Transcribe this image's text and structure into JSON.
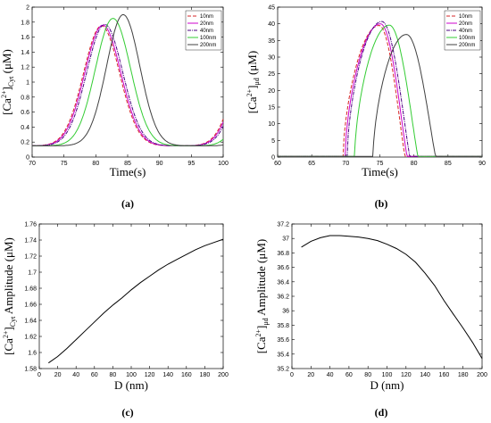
{
  "chart_data": [
    {
      "type": "line",
      "panel_label": "(a)",
      "xlabel": "Time(s)",
      "ylabel_parts": [
        "[Ca",
        "2+",
        "]",
        "Cyt",
        " (μM)"
      ],
      "xlim": [
        70,
        100
      ],
      "ylim": [
        0,
        2
      ],
      "xticks": [
        70,
        75,
        80,
        85,
        90,
        95,
        100
      ],
      "yticks": [
        0,
        0.2,
        0.4,
        0.6,
        0.8,
        1,
        1.2,
        1.4,
        1.6,
        1.8,
        2
      ],
      "legend": "top-right",
      "series": [
        {
          "name": "10nm",
          "color": "#d62728",
          "dash": "4,2",
          "peak_t": 80.9,
          "width": 4.0,
          "base": 0.15,
          "amp": 1.6
        },
        {
          "name": "20nm",
          "color": "#cc00cc",
          "dash": "",
          "peak_t": 81.1,
          "width": 4.0,
          "base": 0.15,
          "amp": 1.61
        },
        {
          "name": "40nm",
          "color": "#4b0082",
          "dash": "4,1,1,1",
          "peak_t": 81.4,
          "width": 4.0,
          "base": 0.15,
          "amp": 1.62
        },
        {
          "name": "100nm",
          "color": "#33cc33",
          "dash": "",
          "peak_t": 82.7,
          "width": 3.9,
          "base": 0.15,
          "amp": 1.7
        },
        {
          "name": "200nm",
          "color": "#404040",
          "dash": "",
          "peak_t": 84.3,
          "width": 3.7,
          "base": 0.15,
          "amp": 1.75
        }
      ]
    },
    {
      "type": "line",
      "panel_label": "(b)",
      "xlabel": "Time(s)",
      "ylabel_parts": [
        "[Ca",
        "2+",
        "]",
        "μd",
        " (μM)"
      ],
      "xlim": [
        60,
        90
      ],
      "ylim": [
        0,
        45
      ],
      "xticks": [
        60,
        65,
        70,
        75,
        80,
        85,
        90
      ],
      "yticks": [
        0,
        5,
        10,
        15,
        20,
        25,
        30,
        35,
        40,
        45
      ],
      "legend": "top-right",
      "series": [
        {
          "name": "10nm",
          "color": "#d62728",
          "dash": "4,2",
          "start": 69.6,
          "peak_t": 74.9,
          "end": 78.7,
          "peak": 39.5
        },
        {
          "name": "20nm",
          "color": "#cc00cc",
          "dash": "",
          "start": 69.9,
          "peak_t": 75.1,
          "end": 79.0,
          "peak": 40.0
        },
        {
          "name": "40nm",
          "color": "#4b0082",
          "dash": "4,1,1,1",
          "start": 70.2,
          "peak_t": 75.3,
          "end": 79.4,
          "peak": 40.7
        },
        {
          "name": "100nm",
          "color": "#33cc33",
          "dash": "",
          "start": 71.3,
          "peak_t": 76.4,
          "end": 80.6,
          "peak": 39.6
        },
        {
          "name": "200nm",
          "color": "#404040",
          "dash": "",
          "start": 74.0,
          "peak_t": 78.9,
          "end": 83.2,
          "peak": 36.8
        }
      ]
    },
    {
      "type": "line",
      "panel_label": "(c)",
      "xlabel": "D (nm)",
      "ylabel_parts": [
        "[Ca",
        "2+",
        "]",
        "Cyt",
        " Amplitude (μM)"
      ],
      "xlim": [
        0,
        200
      ],
      "ylim": [
        1.58,
        1.76
      ],
      "xticks": [
        0,
        20,
        40,
        60,
        80,
        100,
        120,
        140,
        160,
        180,
        200
      ],
      "yticks": [
        1.58,
        1.6,
        1.62,
        1.64,
        1.66,
        1.68,
        1.7,
        1.72,
        1.74,
        1.76
      ],
      "series": [
        {
          "x": [
            10,
            20,
            30,
            40,
            50,
            60,
            70,
            80,
            90,
            100,
            110,
            120,
            130,
            140,
            150,
            160,
            170,
            180,
            190,
            200
          ],
          "y": [
            1.587,
            1.595,
            1.605,
            1.616,
            1.627,
            1.638,
            1.649,
            1.659,
            1.668,
            1.678,
            1.687,
            1.695,
            1.703,
            1.71,
            1.716,
            1.722,
            1.728,
            1.733,
            1.737,
            1.741
          ]
        }
      ]
    },
    {
      "type": "line",
      "panel_label": "(d)",
      "xlabel": "D (nm)",
      "ylabel_parts": [
        "[Ca",
        "2+",
        "]",
        "μd",
        " Amplitude (μM)"
      ],
      "xlim": [
        0,
        200
      ],
      "ylim": [
        35.2,
        37.2
      ],
      "xticks": [
        0,
        20,
        40,
        60,
        80,
        100,
        120,
        140,
        160,
        180,
        200
      ],
      "yticks": [
        35.2,
        35.4,
        35.6,
        35.8,
        36,
        36.2,
        36.4,
        36.6,
        36.8,
        37,
        37.2
      ],
      "series": [
        {
          "x": [
            10,
            20,
            30,
            40,
            50,
            60,
            70,
            80,
            90,
            100,
            110,
            120,
            130,
            140,
            150,
            160,
            170,
            180,
            190,
            200
          ],
          "y": [
            36.88,
            36.96,
            37.01,
            37.04,
            37.04,
            37.03,
            37.02,
            37.0,
            36.97,
            36.92,
            36.86,
            36.78,
            36.67,
            36.52,
            36.35,
            36.14,
            35.95,
            35.76,
            35.56,
            35.34
          ]
        }
      ]
    }
  ]
}
